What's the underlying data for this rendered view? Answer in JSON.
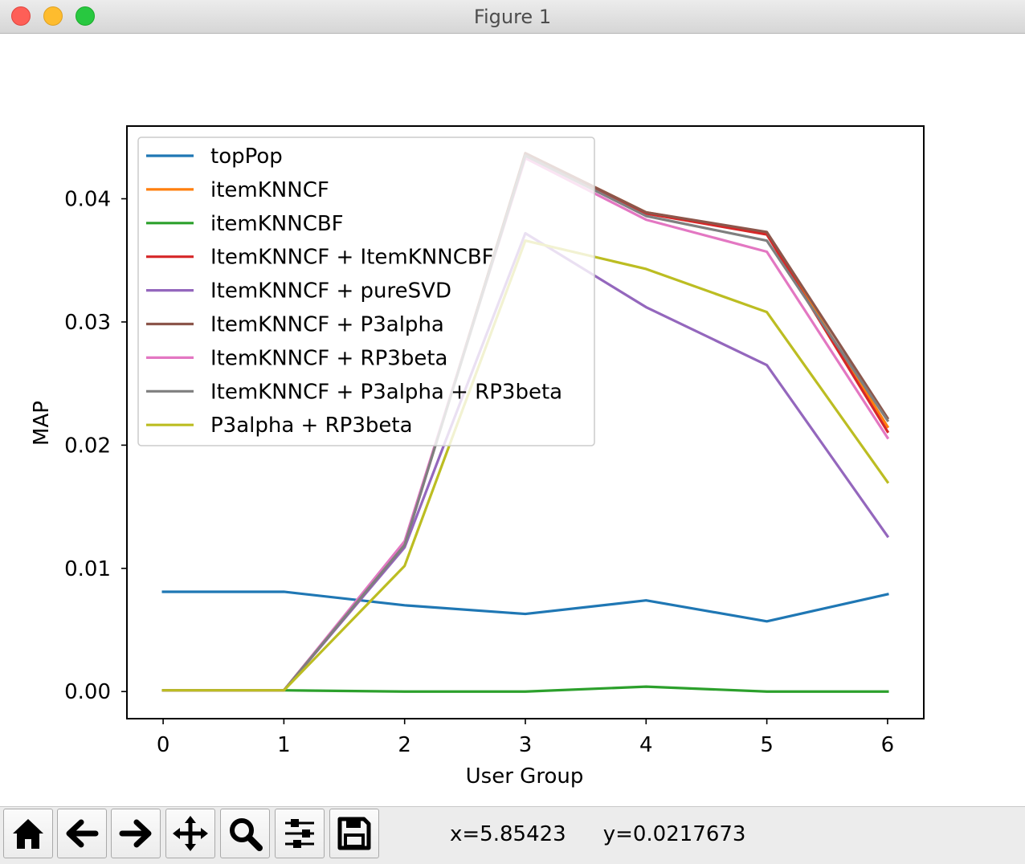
{
  "window": {
    "title": "Figure 1"
  },
  "toolbar": {
    "buttons": [
      {
        "name": "home-button",
        "icon": "home-icon"
      },
      {
        "name": "back-button",
        "icon": "arrow-left-icon"
      },
      {
        "name": "forward-button",
        "icon": "arrow-right-icon"
      },
      {
        "name": "pan-button",
        "icon": "move-icon"
      },
      {
        "name": "zoom-button",
        "icon": "magnifier-icon"
      },
      {
        "name": "configure-subplots-button",
        "icon": "sliders-icon"
      },
      {
        "name": "save-button",
        "icon": "floppy-disk-icon"
      }
    ],
    "coords_x": "x=5.85423",
    "coords_y": "y=0.0217673"
  },
  "chart_data": {
    "type": "line",
    "title": "",
    "xlabel": "User Group",
    "ylabel": "MAP",
    "x": [
      0,
      1,
      2,
      3,
      4,
      5,
      6
    ],
    "xlim": [
      -0.3,
      6.3
    ],
    "ylim": [
      -0.0022,
      0.0459
    ],
    "xticks": [
      0,
      1,
      2,
      3,
      4,
      5,
      6
    ],
    "yticks": [
      0.0,
      0.01,
      0.02,
      0.03,
      0.04
    ],
    "ytick_labels": [
      "0.00",
      "0.01",
      "0.02",
      "0.03",
      "0.04"
    ],
    "grid": false,
    "legend_position": "upper-left",
    "series": [
      {
        "name": "topPop",
        "color": "#1f77b4",
        "values": [
          0.0081,
          0.0081,
          0.007,
          0.0063,
          0.0074,
          0.0057,
          0.0079
        ]
      },
      {
        "name": "itemKNNCF",
        "color": "#ff7f0e",
        "values": [
          0.0001,
          0.0001,
          0.0119,
          0.0437,
          0.0389,
          0.0372,
          0.0215
        ]
      },
      {
        "name": "itemKNNCBF",
        "color": "#2ca02c",
        "values": [
          0.0001,
          0.0001,
          0.0,
          0.0,
          0.0004,
          0.0,
          0.0
        ]
      },
      {
        "name": "ItemKNNCF + ItemKNNCBF",
        "color": "#d62728",
        "values": [
          0.0001,
          0.0001,
          0.012,
          0.0436,
          0.0388,
          0.0371,
          0.0211
        ]
      },
      {
        "name": "ItemKNNCF + pureSVD",
        "color": "#9467bd",
        "values": [
          0.0001,
          0.0001,
          0.0117,
          0.0372,
          0.0312,
          0.0265,
          0.0126
        ]
      },
      {
        "name": "ItemKNNCF + P3alpha",
        "color": "#8c564b",
        "values": [
          0.0001,
          0.0001,
          0.0119,
          0.0437,
          0.0389,
          0.0373,
          0.0222
        ]
      },
      {
        "name": "ItemKNNCF + RP3beta",
        "color": "#e377c2",
        "values": [
          0.0001,
          0.0001,
          0.0122,
          0.0433,
          0.0383,
          0.0357,
          0.0206
        ]
      },
      {
        "name": "ItemKNNCF + P3alpha + RP3beta",
        "color": "#7f7f7f",
        "values": [
          0.0001,
          0.0001,
          0.0119,
          0.0435,
          0.0386,
          0.0366,
          0.022
        ]
      },
      {
        "name": "P3alpha + RP3beta",
        "color": "#bcbd22",
        "values": [
          0.0001,
          0.0001,
          0.0102,
          0.0366,
          0.0343,
          0.0308,
          0.017
        ]
      }
    ]
  }
}
